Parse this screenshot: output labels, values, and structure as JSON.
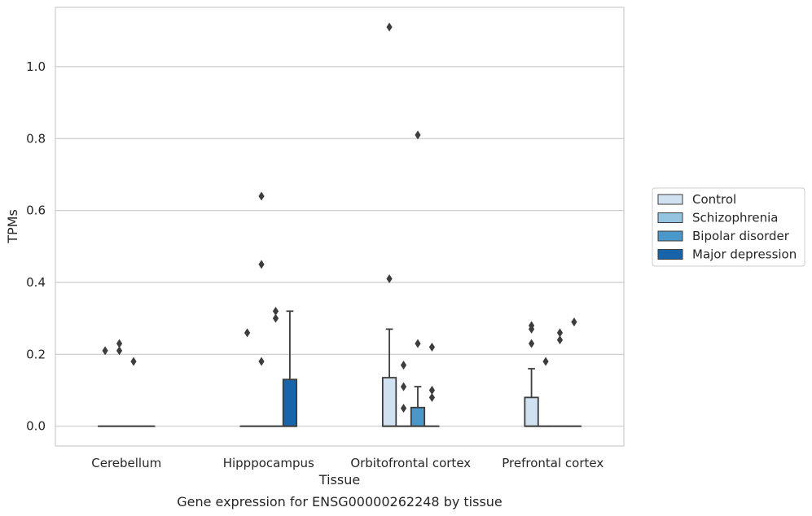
{
  "chart_data": {
    "type": "box",
    "title": "",
    "xlabel": "Tissue",
    "ylabel": "TPMs",
    "caption": "Gene expression for ENSG00000262248 by tissue",
    "ylim": [
      -0.055,
      1.165
    ],
    "yticks": [
      "0.0",
      "0.2",
      "0.4",
      "0.6",
      "0.8",
      "1.0"
    ],
    "grid": true,
    "legend_position": "right",
    "categories": [
      "Cerebellum",
      "Hipppocampus",
      "Orbitofrontal cortex",
      "Prefrontal cortex"
    ],
    "series": [
      {
        "name": "Control",
        "color": "#d0e1f2",
        "boxes": [
          {
            "q1": 0,
            "median": 0,
            "q3": 0,
            "whisker_low": 0,
            "whisker_high": 0,
            "outliers": [
              0.21
            ]
          },
          {
            "q1": 0,
            "median": 0,
            "q3": 0,
            "whisker_low": 0,
            "whisker_high": 0,
            "outliers": [
              0.26
            ]
          },
          {
            "q1": 0,
            "median": 0,
            "q3": 0.135,
            "whisker_low": 0,
            "whisker_high": 0.27,
            "outliers": [
              0.41,
              1.11
            ]
          },
          {
            "q1": 0,
            "median": 0,
            "q3": 0.08,
            "whisker_low": 0,
            "whisker_high": 0.16,
            "outliers": [
              0.23,
              0.27,
              0.28
            ]
          }
        ]
      },
      {
        "name": "Schizophrenia",
        "color": "#94c4df",
        "boxes": [
          {
            "q1": 0,
            "median": 0,
            "q3": 0,
            "whisker_low": 0,
            "whisker_high": 0,
            "outliers": [
              0.21,
              0.23
            ]
          },
          {
            "q1": 0,
            "median": 0,
            "q3": 0,
            "whisker_low": 0,
            "whisker_high": 0,
            "outliers": [
              0.18,
              0.45,
              0.64
            ]
          },
          {
            "q1": 0,
            "median": 0,
            "q3": 0,
            "whisker_low": 0,
            "whisker_high": 0,
            "outliers": [
              0.05,
              0.11,
              0.17
            ]
          },
          {
            "q1": 0,
            "median": 0,
            "q3": 0,
            "whisker_low": 0,
            "whisker_high": 0,
            "outliers": [
              0.18
            ]
          }
        ]
      },
      {
        "name": "Bipolar disorder",
        "color": "#4a98c9",
        "boxes": [
          {
            "q1": 0,
            "median": 0,
            "q3": 0,
            "whisker_low": 0,
            "whisker_high": 0,
            "outliers": [
              0.18
            ]
          },
          {
            "q1": 0,
            "median": 0,
            "q3": 0,
            "whisker_low": 0,
            "whisker_high": 0,
            "outliers": [
              0.3,
              0.32
            ]
          },
          {
            "q1": 0,
            "median": 0,
            "q3": 0.052,
            "whisker_low": 0,
            "whisker_high": 0.11,
            "outliers": [
              0.23,
              0.81
            ]
          },
          {
            "q1": 0,
            "median": 0,
            "q3": 0,
            "whisker_low": 0,
            "whisker_high": 0,
            "outliers": [
              0.24,
              0.26
            ]
          }
        ]
      },
      {
        "name": "Major depression",
        "color": "#1764ab",
        "boxes": [
          {
            "q1": 0,
            "median": 0,
            "q3": 0,
            "whisker_low": 0,
            "whisker_high": 0,
            "outliers": []
          },
          {
            "q1": 0,
            "median": 0,
            "q3": 0.13,
            "whisker_low": 0,
            "whisker_high": 0.32,
            "outliers": []
          },
          {
            "q1": 0,
            "median": 0,
            "q3": 0,
            "whisker_low": 0,
            "whisker_high": 0,
            "outliers": [
              0.08,
              0.1,
              0.22
            ]
          },
          {
            "q1": 0,
            "median": 0,
            "q3": 0,
            "whisker_low": 0,
            "whisker_high": 0,
            "outliers": [
              0.29
            ]
          }
        ]
      }
    ]
  }
}
